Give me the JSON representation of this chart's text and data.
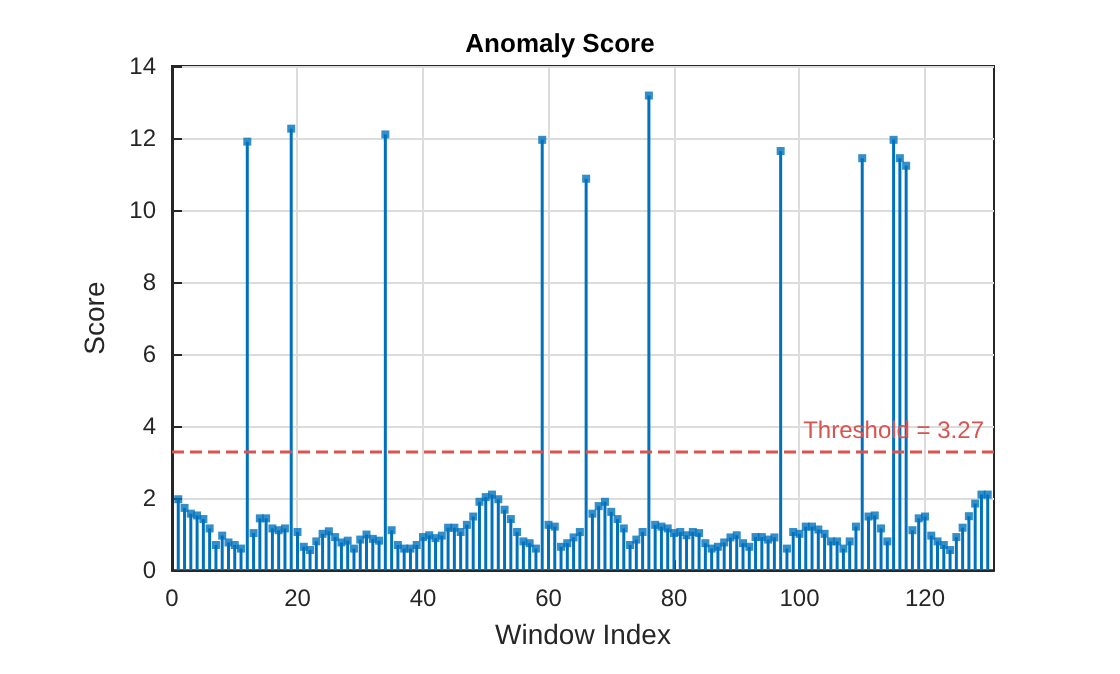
{
  "chart_data": {
    "type": "lollipop",
    "title": "Anomaly Score",
    "xlabel": "Window Index",
    "ylabel": "Score",
    "x": [
      1,
      2,
      3,
      4,
      5,
      6,
      7,
      8,
      9,
      10,
      11,
      12,
      13,
      14,
      15,
      16,
      17,
      18,
      19,
      20,
      21,
      22,
      23,
      24,
      25,
      26,
      27,
      28,
      29,
      30,
      31,
      32,
      33,
      34,
      35,
      36,
      37,
      38,
      39,
      40,
      41,
      42,
      43,
      44,
      45,
      46,
      47,
      48,
      49,
      50,
      51,
      52,
      53,
      54,
      55,
      56,
      57,
      58,
      59,
      60,
      61,
      62,
      63,
      64,
      65,
      66,
      67,
      68,
      69,
      70,
      71,
      72,
      73,
      74,
      75,
      76,
      77,
      78,
      79,
      80,
      81,
      82,
      83,
      84,
      85,
      86,
      87,
      88,
      89,
      90,
      91,
      92,
      93,
      94,
      95,
      96,
      97,
      98,
      99,
      100,
      101,
      102,
      103,
      104,
      105,
      106,
      107,
      108,
      109,
      110,
      111,
      112,
      113,
      114,
      115,
      116,
      117,
      118,
      119,
      120,
      121,
      122,
      123,
      124,
      125,
      126,
      127,
      128,
      129,
      130
    ],
    "series": [
      {
        "color": "#0072bd",
        "values": [
          1.97,
          1.73,
          1.57,
          1.52,
          1.42,
          1.16,
          0.7,
          0.96,
          0.77,
          0.7,
          0.6,
          11.9,
          1.03,
          1.44,
          1.44,
          1.16,
          1.11,
          1.16,
          12.26,
          1.06,
          0.65,
          0.56,
          0.8,
          1.01,
          1.08,
          0.92,
          0.77,
          0.82,
          0.6,
          0.85,
          0.99,
          0.87,
          0.82,
          12.1,
          1.11,
          0.7,
          0.6,
          0.6,
          0.7,
          0.92,
          0.97,
          0.89,
          0.96,
          1.18,
          1.18,
          1.06,
          1.26,
          1.49,
          1.9,
          2.03,
          2.1,
          1.97,
          1.68,
          1.42,
          1.06,
          0.8,
          0.75,
          0.6,
          11.95,
          1.26,
          1.21,
          0.65,
          0.75,
          0.91,
          1.06,
          10.87,
          1.57,
          1.78,
          1.9,
          1.62,
          1.42,
          1.16,
          0.7,
          0.85,
          1.06,
          13.18,
          1.26,
          1.21,
          1.16,
          1.03,
          1.06,
          0.97,
          1.06,
          1.03,
          0.75,
          0.6,
          0.65,
          0.77,
          0.91,
          0.97,
          0.75,
          0.65,
          0.92,
          0.92,
          0.85,
          0.91,
          11.64,
          0.6,
          1.06,
          1.01,
          1.21,
          1.21,
          1.13,
          1.01,
          0.8,
          0.8,
          0.6,
          0.8,
          1.21,
          11.44,
          1.49,
          1.52,
          1.16,
          0.8,
          11.95,
          11.44,
          11.23,
          1.11,
          1.44,
          1.49,
          0.96,
          0.8,
          0.7,
          0.56,
          0.92,
          1.18,
          1.5,
          1.85,
          2.1,
          2.1
        ]
      }
    ],
    "xlim": [
      0,
      131
    ],
    "xticks": [
      0,
      20,
      40,
      60,
      80,
      100,
      120
    ],
    "ylim": [
      0,
      14
    ],
    "yticks": [
      0,
      2,
      4,
      6,
      8,
      10,
      12,
      14
    ],
    "ref_lines": [
      {
        "axis": "y",
        "value": 3.27,
        "label": "Threshold = 3.27",
        "color": "#d9534f",
        "line_style": "dashed"
      }
    ],
    "grid": true,
    "marker": "square"
  }
}
